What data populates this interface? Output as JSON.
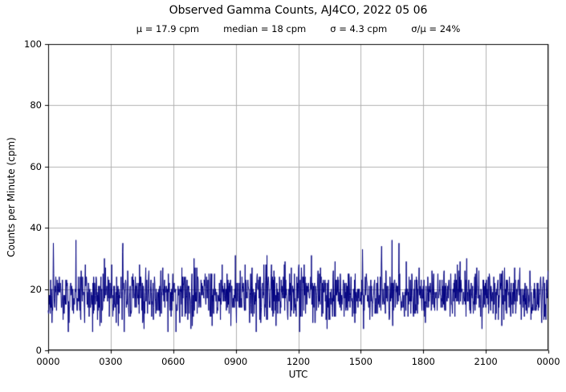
{
  "title": "Observed Gamma Counts, AJ4CO, 2022 05 06",
  "stats": {
    "mu": "μ = 17.9 cpm",
    "median": "median = 18 cpm",
    "sigma": "σ = 4.3 cpm",
    "ratio": "σ/μ = 24%"
  },
  "chart_data": {
    "type": "line",
    "title": "Observed Gamma Counts, AJ4CO, 2022 05 06",
    "xlabel": "UTC",
    "ylabel": "Counts per Minute (cpm)",
    "x_ticks": [
      "0000",
      "0300",
      "0600",
      "0900",
      "1200",
      "1500",
      "1800",
      "2100",
      "0000"
    ],
    "x_tick_minutes": [
      0,
      180,
      360,
      540,
      720,
      900,
      1080,
      1260,
      1440
    ],
    "y_ticks": [
      0,
      20,
      40,
      60,
      80,
      100
    ],
    "ylim": [
      0,
      100
    ],
    "xlim_minutes": [
      0,
      1440
    ],
    "n_points": 1440,
    "mean": 17.9,
    "median": 18,
    "sigma": 4.3,
    "clip": [
      6,
      33
    ],
    "spikes": [
      {
        "minute": 15,
        "value": 35
      },
      {
        "minute": 80,
        "value": 36
      },
      {
        "minute": 215,
        "value": 35
      },
      {
        "minute": 420,
        "value": 30
      },
      {
        "minute": 630,
        "value": 31
      },
      {
        "minute": 905,
        "value": 33
      },
      {
        "minute": 960,
        "value": 34
      },
      {
        "minute": 990,
        "value": 36
      },
      {
        "minute": 1010,
        "value": 35
      },
      {
        "minute": 1205,
        "value": 30
      }
    ],
    "grid": true,
    "grid_color": "#b0b0b0",
    "line_color": "#000080",
    "frame_color": "#000000",
    "seed": 20220506
  }
}
